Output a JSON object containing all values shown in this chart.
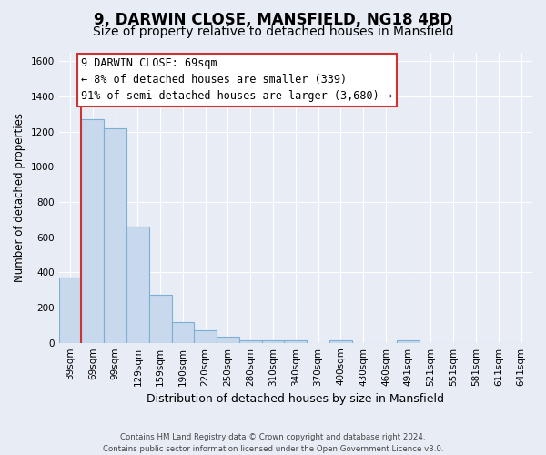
{
  "title": "9, DARWIN CLOSE, MANSFIELD, NG18 4BD",
  "subtitle": "Size of property relative to detached houses in Mansfield",
  "xlabel": "Distribution of detached houses by size in Mansfield",
  "ylabel": "Number of detached properties",
  "bin_labels": [
    "39sqm",
    "69sqm",
    "99sqm",
    "129sqm",
    "159sqm",
    "190sqm",
    "220sqm",
    "250sqm",
    "280sqm",
    "310sqm",
    "340sqm",
    "370sqm",
    "400sqm",
    "430sqm",
    "460sqm",
    "491sqm",
    "521sqm",
    "551sqm",
    "581sqm",
    "611sqm",
    "641sqm"
  ],
  "bar_heights": [
    370,
    1270,
    1220,
    660,
    270,
    115,
    70,
    35,
    15,
    15,
    15,
    0,
    15,
    0,
    0,
    15,
    0,
    0,
    0,
    0,
    0
  ],
  "bar_color": "#c9d9ed",
  "bar_edge_color": "#7bafd4",
  "vline_color": "#cc3333",
  "ylim": [
    0,
    1650
  ],
  "yticks": [
    0,
    200,
    400,
    600,
    800,
    1000,
    1200,
    1400,
    1600
  ],
  "annotation_line1": "9 DARWIN CLOSE: 69sqm",
  "annotation_line2": "← 8% of detached houses are smaller (339)",
  "annotation_line3": "91% of semi-detached houses are larger (3,680) →",
  "annotation_box_color": "#ffffff",
  "annotation_box_edge_color": "#cc3333",
  "footer_text": "Contains HM Land Registry data © Crown copyright and database right 2024.\nContains public sector information licensed under the Open Government Licence v3.0.",
  "background_color": "#e8ecf5",
  "plot_bg_color": "#e8ecf5",
  "grid_color": "#ffffff",
  "title_fontsize": 12,
  "subtitle_fontsize": 10,
  "xlabel_fontsize": 9,
  "ylabel_fontsize": 8.5,
  "tick_fontsize": 7.5,
  "annotation_fontsize": 8.5
}
